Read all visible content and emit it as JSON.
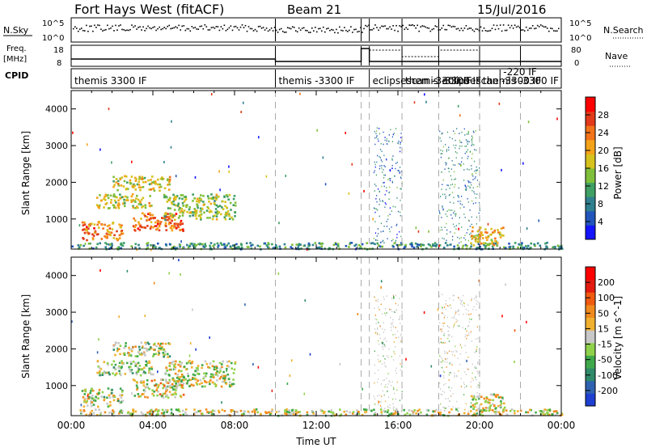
{
  "header": {
    "station": "Fort Hays West (fitACF)",
    "beam": "Beam 21",
    "date": "15/Jul/2016"
  },
  "strips": {
    "nsky_label": "N.Sky",
    "nsky_ticks": [
      "10^5",
      "10^0"
    ],
    "nsearch_label": "N.Search",
    "nsearch_ticks": [
      "10^5",
      "10^0"
    ],
    "freq_label_1": "Freq.",
    "freq_label_2": "[MHz]",
    "freq_ticks": [
      "18",
      "8"
    ],
    "nave_label": "Nave",
    "nave_ticks": [
      "80",
      "0"
    ],
    "cpid_label": "CPID",
    "cpid_segments": [
      {
        "label": "themis 3300 IF",
        "start": 0.0,
        "end": 10.0
      },
      {
        "label": "themis -3300 IF",
        "start": 10.0,
        "end": 14.2
      },
      {
        "label": "eclipsescan -3300 IF",
        "start": 14.6,
        "end": 16.2
      },
      {
        "label": "themis -3300 IF",
        "start": 16.2,
        "end": 18.0
      },
      {
        "label": "eclipsescan -3300 IF",
        "start": 18.0,
        "end": 20.0
      },
      {
        "label": "themis -3300 IF",
        "start": 20.0,
        "end": 24.0
      },
      {
        "label": "-220 IF",
        "start": 21.0,
        "end": 22.0
      }
    ]
  },
  "chart_data": [
    {
      "type": "heatmap",
      "name": "power-panel",
      "ylabel": "Slant Range [km]",
      "xlabel": "",
      "xlim": [
        0,
        24
      ],
      "ylim": [
        180,
        4500
      ],
      "yticks": [
        1000,
        2000,
        3000,
        4000
      ],
      "colorbar": {
        "label": "Power [dB]",
        "range": [
          0,
          32
        ],
        "ticks": [
          "4",
          "8",
          "12",
          "16",
          "20",
          "24",
          "28"
        ],
        "colors": [
          "#1414ff",
          "#2255bb",
          "#2f7f8f",
          "#3f9f64",
          "#7fbf3a",
          "#d6c21e",
          "#f4a21a",
          "#f2731a",
          "#e23a1a",
          "#ff0000"
        ]
      },
      "echo_regions": [
        {
          "t0": 0.5,
          "t1": 2.5,
          "r0": 450,
          "r1": 950,
          "level": 0.75
        },
        {
          "t0": 1.2,
          "t1": 4.0,
          "r0": 1300,
          "r1": 1700,
          "level": 0.55
        },
        {
          "t0": 2.0,
          "t1": 4.8,
          "r0": 1800,
          "r1": 2200,
          "level": 0.55
        },
        {
          "t0": 3.0,
          "t1": 5.5,
          "r0": 700,
          "r1": 1200,
          "level": 0.8
        },
        {
          "t0": 4.5,
          "t1": 8.0,
          "r0": 1000,
          "r1": 1700,
          "level": 0.45
        },
        {
          "t0": 0.0,
          "t1": 24.0,
          "r0": 200,
          "r1": 380,
          "level": 0.3
        },
        {
          "t0": 14.8,
          "t1": 16.2,
          "r0": 300,
          "r1": 3500,
          "level": 0.2
        },
        {
          "t0": 18.0,
          "t1": 20.0,
          "r0": 300,
          "r1": 3500,
          "level": 0.25
        },
        {
          "t0": 19.5,
          "t1": 21.2,
          "r0": 300,
          "r1": 800,
          "level": 0.6
        }
      ]
    },
    {
      "type": "heatmap",
      "name": "velocity-panel",
      "ylabel": "Slant Range [km]",
      "xlabel": "Time UT",
      "xlim": [
        0,
        24
      ],
      "ylim": [
        180,
        4500
      ],
      "yticks": [
        1000,
        2000,
        3000,
        4000
      ],
      "xticks": [
        "00:00",
        "04:00",
        "08:00",
        "12:00",
        "16:00",
        "20:00",
        "00:00"
      ],
      "colorbar": {
        "label": "Velocity [m s^-1]",
        "range": [
          -250,
          250
        ],
        "ticks": [
          "200",
          "100",
          "50",
          "15",
          "-15",
          "-50",
          "-100",
          "-200"
        ],
        "colors": [
          "#1e3fcf",
          "#2f62b0",
          "#2f8a6a",
          "#3fa84a",
          "#8fd14a",
          "#c8c8c8",
          "#f0b030",
          "#f08a1e",
          "#f05a10",
          "#e21a10",
          "#ff0000"
        ]
      },
      "echo_regions": [
        {
          "t0": 0.5,
          "t1": 2.5,
          "r0": 450,
          "r1": 950,
          "level": 0.45
        },
        {
          "t0": 1.2,
          "t1": 4.0,
          "r0": 1300,
          "r1": 1700,
          "level": 0.4
        },
        {
          "t0": 2.0,
          "t1": 4.8,
          "r0": 1800,
          "r1": 2200,
          "level": 0.45
        },
        {
          "t0": 3.0,
          "t1": 5.5,
          "r0": 700,
          "r1": 1200,
          "level": 0.55
        },
        {
          "t0": 4.5,
          "t1": 8.0,
          "r0": 1000,
          "r1": 1700,
          "level": 0.5
        },
        {
          "t0": 0.0,
          "t1": 24.0,
          "r0": 200,
          "r1": 380,
          "level": 0.5
        },
        {
          "t0": 14.8,
          "t1": 16.2,
          "r0": 300,
          "r1": 3500,
          "level": 0.5
        },
        {
          "t0": 18.0,
          "t1": 20.0,
          "r0": 300,
          "r1": 3500,
          "level": 0.5
        },
        {
          "t0": 19.5,
          "t1": 21.2,
          "r0": 300,
          "r1": 800,
          "level": 0.5
        }
      ]
    }
  ],
  "mode_changes_ut": [
    10.0,
    14.2,
    14.6,
    16.2,
    18.0,
    20.0,
    22.0
  ]
}
